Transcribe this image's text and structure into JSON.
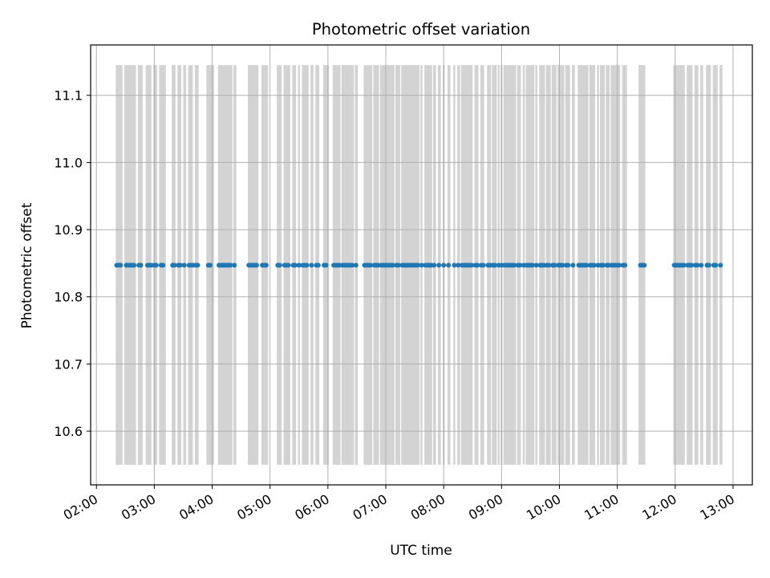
{
  "chart_data": {
    "type": "scatter",
    "title": "Photometric offset variation",
    "xlabel": "UTC time",
    "ylabel": "Photometric offset",
    "x_tick_labels": [
      "02:00",
      "03:00",
      "04:00",
      "05:00",
      "06:00",
      "07:00",
      "08:00",
      "09:00",
      "10:00",
      "11:00",
      "12:00",
      "13:00"
    ],
    "y_ticks": [
      10.6,
      10.7,
      10.8,
      10.9,
      11.0,
      11.1
    ],
    "xlim": [
      "01:54",
      "13:20"
    ],
    "ylim": [
      10.52,
      11.175
    ],
    "grid": true,
    "colors": {
      "points": "#1f77b4",
      "bands": "#d3d3d3",
      "grid": "#b0b0b0"
    },
    "bands": {
      "ymin": 10.55,
      "ymax": 11.145,
      "spans": [
        [
          "02:20",
          "02:27"
        ],
        [
          "02:29",
          "02:41"
        ],
        [
          "02:43",
          "02:48"
        ],
        [
          "02:51",
          "02:57"
        ],
        [
          "02:59",
          "03:03"
        ],
        [
          "03:05",
          "03:12"
        ],
        [
          "03:18",
          "03:22"
        ],
        [
          "03:24",
          "03:28"
        ],
        [
          "03:30",
          "03:33"
        ],
        [
          "03:35",
          "03:40"
        ],
        [
          "03:42",
          "03:46"
        ],
        [
          "03:54",
          "04:02"
        ],
        [
          "04:06",
          "04:21"
        ],
        [
          "04:22",
          "04:25"
        ],
        [
          "04:37",
          "04:48"
        ],
        [
          "04:51",
          "04:58"
        ],
        [
          "05:07",
          "05:12"
        ],
        [
          "05:14",
          "05:21"
        ],
        [
          "05:23",
          "05:27"
        ],
        [
          "05:29",
          "05:31"
        ],
        [
          "05:33",
          "05:40"
        ],
        [
          "05:42",
          "05:45"
        ],
        [
          "05:47",
          "05:51"
        ],
        [
          "05:55",
          "06:01"
        ],
        [
          "06:05",
          "06:13"
        ],
        [
          "06:14",
          "06:27"
        ],
        [
          "06:28",
          "06:31"
        ],
        [
          "06:37",
          "06:46"
        ],
        [
          "06:47",
          "06:53"
        ],
        [
          "06:54",
          "07:09"
        ],
        [
          "07:10",
          "07:15"
        ],
        [
          "07:16",
          "07:35"
        ],
        [
          "07:36",
          "07:38"
        ],
        [
          "07:40",
          "07:48"
        ],
        [
          "07:49",
          "07:52"
        ],
        [
          "07:54",
          "07:57"
        ],
        [
          "07:59",
          "08:01"
        ],
        [
          "08:04",
          "08:07"
        ],
        [
          "08:10",
          "08:12"
        ],
        [
          "08:14",
          "08:17"
        ],
        [
          "08:18",
          "08:30"
        ],
        [
          "08:32",
          "08:36"
        ],
        [
          "08:38",
          "08:42"
        ],
        [
          "08:45",
          "08:49"
        ],
        [
          "08:50",
          "08:55"
        ],
        [
          "08:56",
          "08:58"
        ],
        [
          "08:59",
          "09:01"
        ],
        [
          "09:02",
          "09:15"
        ],
        [
          "09:16",
          "09:20"
        ],
        [
          "09:22",
          "09:24"
        ],
        [
          "09:25",
          "09:34"
        ],
        [
          "09:35",
          "09:37"
        ],
        [
          "09:39",
          "09:45"
        ],
        [
          "09:46",
          "09:51"
        ],
        [
          "09:52",
          "09:57"
        ],
        [
          "09:58",
          "10:05"
        ],
        [
          "10:06",
          "10:11"
        ],
        [
          "10:13",
          "10:16"
        ],
        [
          "10:19",
          "10:30"
        ],
        [
          "10:31",
          "10:37"
        ],
        [
          "10:39",
          "10:41"
        ],
        [
          "10:42",
          "10:47"
        ],
        [
          "10:48",
          "10:52"
        ],
        [
          "10:53",
          "11:03"
        ],
        [
          "11:05",
          "11:10"
        ],
        [
          "11:22",
          "11:29"
        ],
        [
          "11:58",
          "12:10"
        ],
        [
          "12:12",
          "12:18"
        ],
        [
          "12:20",
          "12:24"
        ],
        [
          "12:26",
          "12:29"
        ],
        [
          "12:32",
          "12:37"
        ],
        [
          "12:39",
          "12:44"
        ],
        [
          "12:46",
          "12:49"
        ]
      ]
    },
    "series": [
      {
        "y": 10.847,
        "x": [
          "02:21",
          "02:23",
          "02:25",
          "02:31",
          "02:33",
          "02:35",
          "02:37",
          "02:39",
          "02:44",
          "02:46",
          "02:53",
          "02:55",
          "02:57",
          "03:00",
          "03:02",
          "03:07",
          "03:09",
          "03:19",
          "03:21",
          "03:25",
          "03:27",
          "03:31",
          "03:36",
          "03:38",
          "03:40",
          "03:43",
          "03:45",
          "03:56",
          "03:58",
          "04:07",
          "04:09",
          "04:11",
          "04:13",
          "04:15",
          "04:17",
          "04:19",
          "04:23",
          "04:38",
          "04:40",
          "04:42",
          "04:44",
          "04:46",
          "04:52",
          "04:54",
          "04:56",
          "05:08",
          "05:10",
          "05:15",
          "05:17",
          "05:19",
          "05:24",
          "05:26",
          "05:30",
          "05:34",
          "05:36",
          "05:38",
          "05:43",
          "05:48",
          "05:50",
          "05:56",
          "05:58",
          "06:06",
          "06:08",
          "06:10",
          "06:12",
          "06:15",
          "06:17",
          "06:19",
          "06:21",
          "06:23",
          "06:25",
          "06:29",
          "06:38",
          "06:40",
          "06:42",
          "06:44",
          "06:48",
          "06:50",
          "06:52",
          "06:55",
          "06:57",
          "06:59",
          "07:01",
          "07:03",
          "07:05",
          "07:07",
          "07:11",
          "07:13",
          "07:17",
          "07:19",
          "07:21",
          "07:23",
          "07:25",
          "07:27",
          "07:29",
          "07:31",
          "07:33",
          "07:37",
          "07:41",
          "07:43",
          "07:45",
          "07:47",
          "07:50",
          "07:55",
          "08:00",
          "08:05",
          "08:11",
          "08:15",
          "08:19",
          "08:21",
          "08:23",
          "08:25",
          "08:27",
          "08:29",
          "08:33",
          "08:35",
          "08:39",
          "08:41",
          "08:46",
          "08:48",
          "08:51",
          "08:53",
          "08:57",
          "09:00",
          "09:03",
          "09:05",
          "09:07",
          "09:09",
          "09:11",
          "09:13",
          "09:17",
          "09:19",
          "09:23",
          "09:26",
          "09:28",
          "09:30",
          "09:32",
          "09:36",
          "09:40",
          "09:42",
          "09:44",
          "09:47",
          "09:49",
          "09:53",
          "09:55",
          "09:59",
          "10:01",
          "10:03",
          "10:07",
          "10:09",
          "10:14",
          "10:20",
          "10:22",
          "10:24",
          "10:26",
          "10:28",
          "10:32",
          "10:34",
          "10:36",
          "10:40",
          "10:43",
          "10:45",
          "10:49",
          "10:51",
          "10:54",
          "10:56",
          "10:58",
          "11:00",
          "11:02",
          "11:06",
          "11:08",
          "11:24",
          "11:26",
          "11:28",
          "11:59",
          "12:01",
          "12:03",
          "12:05",
          "12:07",
          "12:09",
          "12:13",
          "12:15",
          "12:17",
          "12:21",
          "12:23",
          "12:27",
          "12:33",
          "12:35",
          "12:40",
          "12:42",
          "12:47"
        ]
      }
    ]
  }
}
